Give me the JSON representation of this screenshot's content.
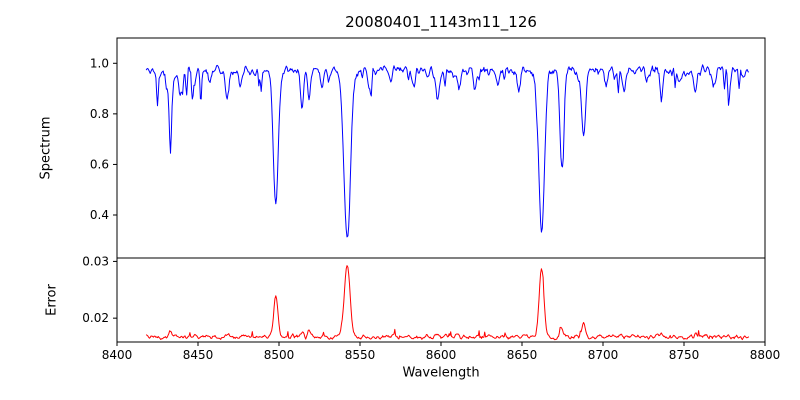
{
  "chart_data": {
    "type": "line",
    "title": "20080401_1143m11_126",
    "xlabel": "Wavelength",
    "x_axis": {
      "lim": [
        8400,
        8800
      ],
      "tick_values": [
        8400,
        8450,
        8500,
        8550,
        8600,
        8650,
        8700,
        8750,
        8800
      ],
      "tick_labels": [
        "8400",
        "8450",
        "8500",
        "8550",
        "8600",
        "8650",
        "8700",
        "8750",
        "8800"
      ]
    },
    "x_data_range": [
      8418,
      8790
    ],
    "x_step": 0.5,
    "panels": [
      {
        "name": "spectrum",
        "ylabel": "Spectrum",
        "color": "#0000ff",
        "ylim": [
          0.23,
          1.1
        ],
        "tick_values": [
          0.4,
          0.6,
          0.8,
          1.0
        ],
        "tick_labels": [
          "0.4",
          "0.6",
          "0.8",
          "1.0"
        ],
        "continuum": 0.97,
        "noise_amplitude": 0.06,
        "absorption_lines": [
          {
            "center": 8425.0,
            "depth": 0.06,
            "width": 1.0
          },
          {
            "center": 8433.0,
            "depth": 0.23,
            "width": 1.1
          },
          {
            "center": 8439.0,
            "depth": 0.09,
            "width": 1.0
          },
          {
            "center": 8447.0,
            "depth": 0.06,
            "width": 0.9
          },
          {
            "center": 8457.0,
            "depth": 0.05,
            "width": 0.9
          },
          {
            "center": 8468.0,
            "depth": 0.11,
            "width": 1.1
          },
          {
            "center": 8476.0,
            "depth": 0.06,
            "width": 0.9
          },
          {
            "center": 8498.0,
            "depth": 0.52,
            "width": 1.5
          },
          {
            "center": 8514.0,
            "depth": 0.15,
            "width": 0.9
          },
          {
            "center": 8518.5,
            "depth": 0.13,
            "width": 0.9
          },
          {
            "center": 8527.0,
            "depth": 0.06,
            "width": 0.9
          },
          {
            "center": 8542.1,
            "depth": 0.66,
            "width": 2.0
          },
          {
            "center": 8556.0,
            "depth": 0.05,
            "width": 0.9
          },
          {
            "center": 8569.0,
            "depth": 0.05,
            "width": 0.9
          },
          {
            "center": 8583.0,
            "depth": 0.07,
            "width": 0.9
          },
          {
            "center": 8598.0,
            "depth": 0.13,
            "width": 1.0
          },
          {
            "center": 8611.0,
            "depth": 0.08,
            "width": 0.9
          },
          {
            "center": 8621.0,
            "depth": 0.07,
            "width": 0.9
          },
          {
            "center": 8635.0,
            "depth": 0.05,
            "width": 0.9
          },
          {
            "center": 8648.0,
            "depth": 0.07,
            "width": 0.9
          },
          {
            "center": 8662.1,
            "depth": 0.63,
            "width": 1.8
          },
          {
            "center": 8674.5,
            "depth": 0.4,
            "width": 1.2
          },
          {
            "center": 8688.0,
            "depth": 0.27,
            "width": 1.2
          },
          {
            "center": 8702.0,
            "depth": 0.06,
            "width": 0.9
          },
          {
            "center": 8713.0,
            "depth": 0.08,
            "width": 0.9
          },
          {
            "center": 8727.0,
            "depth": 0.05,
            "width": 0.9
          },
          {
            "center": 8736.0,
            "depth": 0.09,
            "width": 0.9
          },
          {
            "center": 8747.0,
            "depth": 0.05,
            "width": 0.9
          },
          {
            "center": 8757.0,
            "depth": 0.08,
            "width": 0.9
          },
          {
            "center": 8768.0,
            "depth": 0.05,
            "width": 0.9
          },
          {
            "center": 8778.0,
            "depth": 0.06,
            "width": 0.9
          }
        ]
      },
      {
        "name": "error",
        "ylabel": "Error",
        "color": "#ff0000",
        "ylim": [
          0.0158,
          0.0306
        ],
        "tick_values": [
          0.02,
          0.03
        ],
        "tick_labels": [
          "0.02",
          "0.03"
        ],
        "baseline": 0.0167,
        "noise_amplitude": 0.0012,
        "peaks": [
          {
            "center": 8433.0,
            "height": 0.0011,
            "width": 1.1
          },
          {
            "center": 8468.0,
            "height": 0.0006,
            "width": 1.0
          },
          {
            "center": 8498.0,
            "height": 0.007,
            "width": 1.3
          },
          {
            "center": 8514.0,
            "height": 0.0011,
            "width": 0.9
          },
          {
            "center": 8518.5,
            "height": 0.0008,
            "width": 0.9
          },
          {
            "center": 8542.1,
            "height": 0.0126,
            "width": 1.8
          },
          {
            "center": 8598.0,
            "height": 0.0007,
            "width": 1.0
          },
          {
            "center": 8611.0,
            "height": 0.0005,
            "width": 0.9
          },
          {
            "center": 8662.1,
            "height": 0.0118,
            "width": 1.5
          },
          {
            "center": 8674.5,
            "height": 0.0016,
            "width": 1.1
          },
          {
            "center": 8688.0,
            "height": 0.0022,
            "width": 1.1
          },
          {
            "center": 8736.0,
            "height": 0.0006,
            "width": 0.9
          },
          {
            "center": 8757.0,
            "height": 0.0005,
            "width": 0.9
          }
        ]
      }
    ]
  }
}
